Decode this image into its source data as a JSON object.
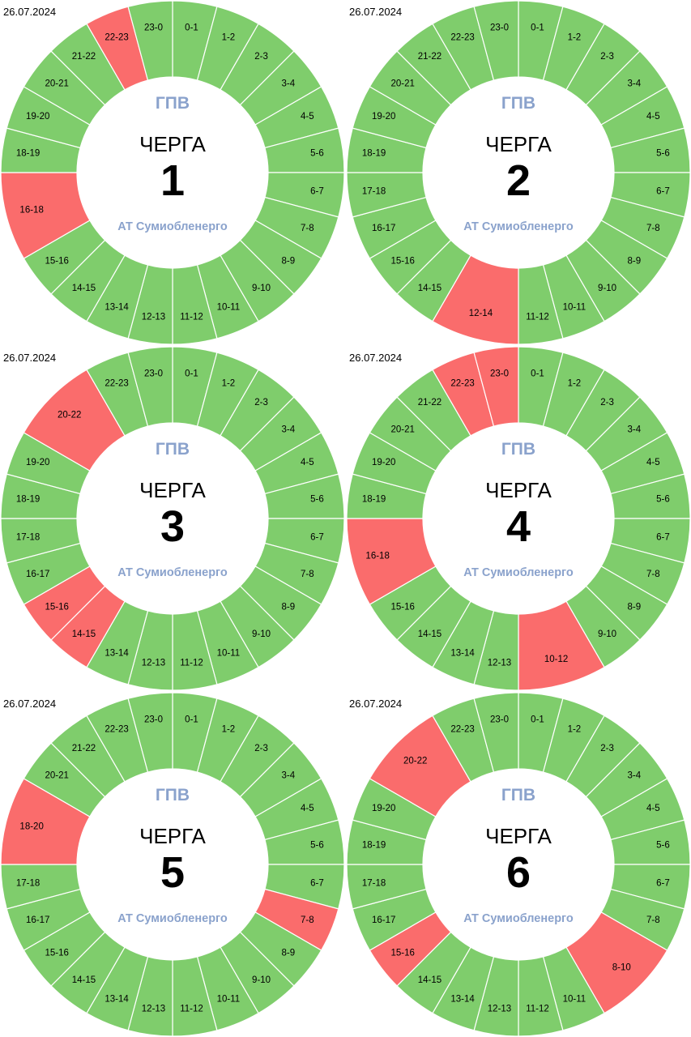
{
  "colors": {
    "on": "#7fcd6c",
    "off": "#fa6c6c",
    "separator": "#ffffff",
    "center": "#ffffff",
    "caption": "#8aa2cc"
  },
  "center": {
    "title": "ГПВ",
    "queue_label": "ЧЕРГА",
    "company": "АТ Сумиобленерго"
  },
  "panels": [
    {
      "date": "26.07.2024",
      "queue": "1",
      "segments": [
        {
          "label": "0-1",
          "hours": 1,
          "off": false
        },
        {
          "label": "1-2",
          "hours": 1,
          "off": false
        },
        {
          "label": "2-3",
          "hours": 1,
          "off": false
        },
        {
          "label": "3-4",
          "hours": 1,
          "off": false
        },
        {
          "label": "4-5",
          "hours": 1,
          "off": false
        },
        {
          "label": "5-6",
          "hours": 1,
          "off": false
        },
        {
          "label": "6-7",
          "hours": 1,
          "off": false
        },
        {
          "label": "7-8",
          "hours": 1,
          "off": false
        },
        {
          "label": "8-9",
          "hours": 1,
          "off": false
        },
        {
          "label": "9-10",
          "hours": 1,
          "off": false
        },
        {
          "label": "10-11",
          "hours": 1,
          "off": false
        },
        {
          "label": "11-12",
          "hours": 1,
          "off": false
        },
        {
          "label": "12-13",
          "hours": 1,
          "off": false
        },
        {
          "label": "13-14",
          "hours": 1,
          "off": false
        },
        {
          "label": "14-15",
          "hours": 1,
          "off": false
        },
        {
          "label": "15-16",
          "hours": 1,
          "off": false
        },
        {
          "label": "16-18",
          "hours": 2,
          "off": true
        },
        {
          "label": "18-19",
          "hours": 1,
          "off": false
        },
        {
          "label": "19-20",
          "hours": 1,
          "off": false
        },
        {
          "label": "20-21",
          "hours": 1,
          "off": false
        },
        {
          "label": "21-22",
          "hours": 1,
          "off": false
        },
        {
          "label": "22-23",
          "hours": 1,
          "off": true
        },
        {
          "label": "23-0",
          "hours": 1,
          "off": false
        }
      ]
    },
    {
      "date": "26.07.2024",
      "queue": "2",
      "segments": [
        {
          "label": "0-1",
          "hours": 1,
          "off": false
        },
        {
          "label": "1-2",
          "hours": 1,
          "off": false
        },
        {
          "label": "2-3",
          "hours": 1,
          "off": false
        },
        {
          "label": "3-4",
          "hours": 1,
          "off": false
        },
        {
          "label": "4-5",
          "hours": 1,
          "off": false
        },
        {
          "label": "5-6",
          "hours": 1,
          "off": false
        },
        {
          "label": "6-7",
          "hours": 1,
          "off": false
        },
        {
          "label": "7-8",
          "hours": 1,
          "off": false
        },
        {
          "label": "8-9",
          "hours": 1,
          "off": false
        },
        {
          "label": "9-10",
          "hours": 1,
          "off": false
        },
        {
          "label": "10-11",
          "hours": 1,
          "off": false
        },
        {
          "label": "11-12",
          "hours": 1,
          "off": false
        },
        {
          "label": "12-14",
          "hours": 2,
          "off": true
        },
        {
          "label": "14-15",
          "hours": 1,
          "off": false
        },
        {
          "label": "15-16",
          "hours": 1,
          "off": false
        },
        {
          "label": "16-17",
          "hours": 1,
          "off": false
        },
        {
          "label": "17-18",
          "hours": 1,
          "off": false
        },
        {
          "label": "18-19",
          "hours": 1,
          "off": false
        },
        {
          "label": "19-20",
          "hours": 1,
          "off": false
        },
        {
          "label": "20-21",
          "hours": 1,
          "off": false
        },
        {
          "label": "21-22",
          "hours": 1,
          "off": false
        },
        {
          "label": "22-23",
          "hours": 1,
          "off": false
        },
        {
          "label": "23-0",
          "hours": 1,
          "off": false
        }
      ]
    },
    {
      "date": "26.07.2024",
      "queue": "3",
      "segments": [
        {
          "label": "0-1",
          "hours": 1,
          "off": false
        },
        {
          "label": "1-2",
          "hours": 1,
          "off": false
        },
        {
          "label": "2-3",
          "hours": 1,
          "off": false
        },
        {
          "label": "3-4",
          "hours": 1,
          "off": false
        },
        {
          "label": "4-5",
          "hours": 1,
          "off": false
        },
        {
          "label": "5-6",
          "hours": 1,
          "off": false
        },
        {
          "label": "6-7",
          "hours": 1,
          "off": false
        },
        {
          "label": "7-8",
          "hours": 1,
          "off": false
        },
        {
          "label": "8-9",
          "hours": 1,
          "off": false
        },
        {
          "label": "9-10",
          "hours": 1,
          "off": false
        },
        {
          "label": "10-11",
          "hours": 1,
          "off": false
        },
        {
          "label": "11-12",
          "hours": 1,
          "off": false
        },
        {
          "label": "12-13",
          "hours": 1,
          "off": false
        },
        {
          "label": "13-14",
          "hours": 1,
          "off": false
        },
        {
          "label": "14-15",
          "hours": 1,
          "off": true
        },
        {
          "label": "15-16",
          "hours": 1,
          "off": true
        },
        {
          "label": "16-17",
          "hours": 1,
          "off": false
        },
        {
          "label": "17-18",
          "hours": 1,
          "off": false
        },
        {
          "label": "18-19",
          "hours": 1,
          "off": false
        },
        {
          "label": "19-20",
          "hours": 1,
          "off": false
        },
        {
          "label": "20-22",
          "hours": 2,
          "off": true
        },
        {
          "label": "22-23",
          "hours": 1,
          "off": false
        },
        {
          "label": "23-0",
          "hours": 1,
          "off": false
        }
      ]
    },
    {
      "date": "26.07.2024",
      "queue": "4",
      "segments": [
        {
          "label": "0-1",
          "hours": 1,
          "off": false
        },
        {
          "label": "1-2",
          "hours": 1,
          "off": false
        },
        {
          "label": "2-3",
          "hours": 1,
          "off": false
        },
        {
          "label": "3-4",
          "hours": 1,
          "off": false
        },
        {
          "label": "4-5",
          "hours": 1,
          "off": false
        },
        {
          "label": "5-6",
          "hours": 1,
          "off": false
        },
        {
          "label": "6-7",
          "hours": 1,
          "off": false
        },
        {
          "label": "7-8",
          "hours": 1,
          "off": false
        },
        {
          "label": "8-9",
          "hours": 1,
          "off": false
        },
        {
          "label": "9-10",
          "hours": 1,
          "off": false
        },
        {
          "label": "10-12",
          "hours": 2,
          "off": true
        },
        {
          "label": "12-13",
          "hours": 1,
          "off": false
        },
        {
          "label": "13-14",
          "hours": 1,
          "off": false
        },
        {
          "label": "14-15",
          "hours": 1,
          "off": false
        },
        {
          "label": "15-16",
          "hours": 1,
          "off": false
        },
        {
          "label": "16-18",
          "hours": 2,
          "off": true
        },
        {
          "label": "18-19",
          "hours": 1,
          "off": false
        },
        {
          "label": "19-20",
          "hours": 1,
          "off": false
        },
        {
          "label": "20-21",
          "hours": 1,
          "off": false
        },
        {
          "label": "21-22",
          "hours": 1,
          "off": false
        },
        {
          "label": "22-23",
          "hours": 1,
          "off": true
        },
        {
          "label": "23-0",
          "hours": 1,
          "off": true
        }
      ]
    },
    {
      "date": "26.07.2024",
      "queue": "5",
      "segments": [
        {
          "label": "0-1",
          "hours": 1,
          "off": false
        },
        {
          "label": "1-2",
          "hours": 1,
          "off": false
        },
        {
          "label": "2-3",
          "hours": 1,
          "off": false
        },
        {
          "label": "3-4",
          "hours": 1,
          "off": false
        },
        {
          "label": "4-5",
          "hours": 1,
          "off": false
        },
        {
          "label": "5-6",
          "hours": 1,
          "off": false
        },
        {
          "label": "6-7",
          "hours": 1,
          "off": false
        },
        {
          "label": "7-8",
          "hours": 1,
          "off": true
        },
        {
          "label": "8-9",
          "hours": 1,
          "off": false
        },
        {
          "label": "9-10",
          "hours": 1,
          "off": false
        },
        {
          "label": "10-11",
          "hours": 1,
          "off": false
        },
        {
          "label": "11-12",
          "hours": 1,
          "off": false
        },
        {
          "label": "12-13",
          "hours": 1,
          "off": false
        },
        {
          "label": "13-14",
          "hours": 1,
          "off": false
        },
        {
          "label": "14-15",
          "hours": 1,
          "off": false
        },
        {
          "label": "15-16",
          "hours": 1,
          "off": false
        },
        {
          "label": "16-17",
          "hours": 1,
          "off": false
        },
        {
          "label": "17-18",
          "hours": 1,
          "off": false
        },
        {
          "label": "18-20",
          "hours": 2,
          "off": true
        },
        {
          "label": "20-21",
          "hours": 1,
          "off": false
        },
        {
          "label": "21-22",
          "hours": 1,
          "off": false
        },
        {
          "label": "22-23",
          "hours": 1,
          "off": false
        },
        {
          "label": "23-0",
          "hours": 1,
          "off": false
        }
      ]
    },
    {
      "date": "26.07.2024",
      "queue": "6",
      "segments": [
        {
          "label": "0-1",
          "hours": 1,
          "off": false
        },
        {
          "label": "1-2",
          "hours": 1,
          "off": false
        },
        {
          "label": "2-3",
          "hours": 1,
          "off": false
        },
        {
          "label": "3-4",
          "hours": 1,
          "off": false
        },
        {
          "label": "4-5",
          "hours": 1,
          "off": false
        },
        {
          "label": "5-6",
          "hours": 1,
          "off": false
        },
        {
          "label": "6-7",
          "hours": 1,
          "off": false
        },
        {
          "label": "7-8",
          "hours": 1,
          "off": false
        },
        {
          "label": "8-10",
          "hours": 2,
          "off": true
        },
        {
          "label": "10-11",
          "hours": 1,
          "off": false
        },
        {
          "label": "11-12",
          "hours": 1,
          "off": false
        },
        {
          "label": "12-13",
          "hours": 1,
          "off": false
        },
        {
          "label": "13-14",
          "hours": 1,
          "off": false
        },
        {
          "label": "14-15",
          "hours": 1,
          "off": false
        },
        {
          "label": "15-16",
          "hours": 1,
          "off": true
        },
        {
          "label": "16-17",
          "hours": 1,
          "off": false
        },
        {
          "label": "17-18",
          "hours": 1,
          "off": false
        },
        {
          "label": "18-19",
          "hours": 1,
          "off": false
        },
        {
          "label": "19-20",
          "hours": 1,
          "off": false
        },
        {
          "label": "20-22",
          "hours": 2,
          "off": true
        },
        {
          "label": "22-23",
          "hours": 1,
          "off": false
        },
        {
          "label": "23-0",
          "hours": 1,
          "off": false
        }
      ]
    }
  ]
}
